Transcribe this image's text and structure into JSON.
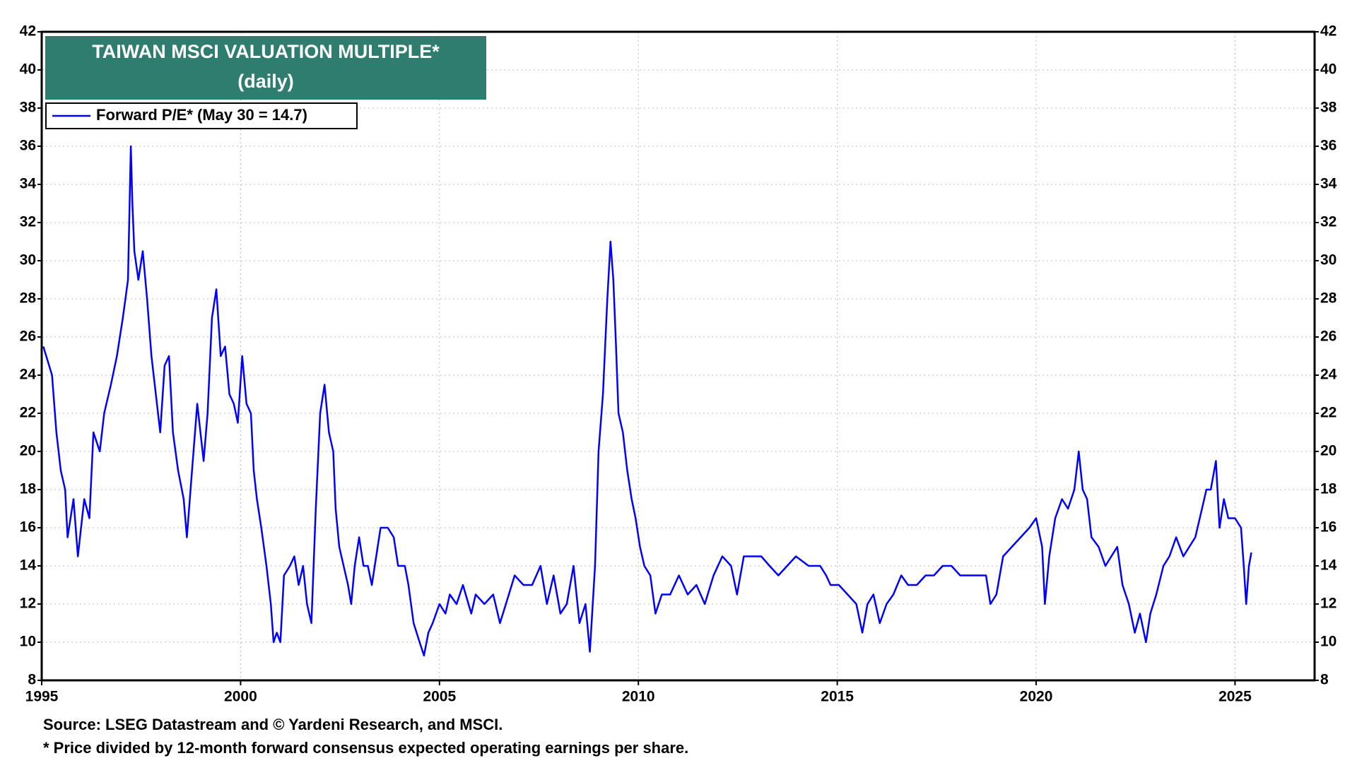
{
  "chart_data": {
    "type": "line",
    "title": "TAIWAN MSCI VALUATION MULTIPLE*",
    "subtitle": "(daily)",
    "notes": [
      "Source: LSEG Datastream and © Yardeni Research, and MSCI.",
      "* Price divided by 12-month forward consensus expected operating earnings per share."
    ],
    "x": [
      1995.04,
      1995.26,
      1995.37,
      1995.48,
      1995.59,
      1995.65,
      1995.8,
      1995.91,
      1996.07,
      1996.2,
      1996.3,
      1996.46,
      1996.57,
      1996.74,
      1996.89,
      1997.04,
      1997.17,
      1997.24,
      1997.28,
      1997.33,
      1997.43,
      1997.54,
      1997.65,
      1997.76,
      1997.87,
      1997.98,
      1998.09,
      1998.2,
      1998.3,
      1998.43,
      1998.57,
      1998.65,
      1998.78,
      1998.91,
      1999.07,
      1999.17,
      1999.28,
      1999.39,
      1999.5,
      1999.61,
      1999.72,
      1999.83,
      1999.93,
      2000.04,
      2000.15,
      2000.26,
      2000.33,
      2000.41,
      2000.52,
      2000.65,
      2000.76,
      2000.83,
      2000.91,
      2001.0,
      2001.09,
      2001.24,
      2001.35,
      2001.46,
      2001.57,
      2001.67,
      2001.78,
      2001.89,
      2002.0,
      2002.11,
      2002.22,
      2002.33,
      2002.39,
      2002.48,
      2002.59,
      2002.7,
      2002.78,
      2002.87,
      2002.98,
      2003.09,
      2003.2,
      2003.3,
      2003.41,
      2003.52,
      2003.7,
      2003.85,
      2003.96,
      2004.13,
      2004.22,
      2004.35,
      2004.5,
      2004.61,
      2004.72,
      2004.83,
      2005.0,
      2005.15,
      2005.26,
      2005.43,
      2005.59,
      2005.8,
      2005.91,
      2006.13,
      2006.35,
      2006.52,
      2006.67,
      2006.89,
      2007.11,
      2007.33,
      2007.54,
      2007.7,
      2007.87,
      2008.04,
      2008.2,
      2008.37,
      2008.52,
      2008.67,
      2008.78,
      2008.91,
      2009.0,
      2009.11,
      2009.22,
      2009.3,
      2009.37,
      2009.43,
      2009.5,
      2009.61,
      2009.72,
      2009.83,
      2009.93,
      2010.04,
      2010.15,
      2010.3,
      2010.43,
      2010.59,
      2010.8,
      2011.02,
      2011.24,
      2011.46,
      2011.67,
      2011.89,
      2012.11,
      2012.33,
      2012.48,
      2012.65,
      2012.87,
      2013.09,
      2013.3,
      2013.52,
      2013.74,
      2013.96,
      2014.28,
      2014.57,
      2014.72,
      2014.83,
      2015.04,
      2015.26,
      2015.48,
      2015.63,
      2015.76,
      2015.91,
      2016.07,
      2016.24,
      2016.41,
      2016.61,
      2016.78,
      2017.0,
      2017.22,
      2017.43,
      2017.65,
      2017.87,
      2018.09,
      2018.3,
      2018.52,
      2018.74,
      2018.85,
      2019.0,
      2019.17,
      2019.39,
      2019.61,
      2019.83,
      2020.0,
      2020.15,
      2020.22,
      2020.33,
      2020.48,
      2020.65,
      2020.8,
      2020.96,
      2021.07,
      2021.17,
      2021.28,
      2021.39,
      2021.57,
      2021.74,
      2021.89,
      2022.04,
      2022.17,
      2022.33,
      2022.48,
      2022.61,
      2022.76,
      2022.87,
      2023.02,
      2023.2,
      2023.35,
      2023.52,
      2023.7,
      2023.85,
      2024.0,
      2024.17,
      2024.28,
      2024.39,
      2024.52,
      2024.61,
      2024.72,
      2024.83,
      2025.0,
      2025.15,
      2025.22,
      2025.28,
      2025.35,
      2025.41
    ],
    "series": [
      {
        "name": "Forward P/E* (May 30 = 14.7)",
        "color": "#0000ff",
        "values": [
          25.5,
          24,
          21,
          19,
          18,
          15.5,
          17.5,
          14.5,
          17.5,
          16.5,
          21,
          20,
          22,
          23.5,
          25,
          27,
          29,
          36,
          33,
          30.5,
          29,
          30.5,
          28,
          25,
          23,
          21,
          24.5,
          25,
          21,
          19,
          17.5,
          15.5,
          19,
          22.5,
          19.5,
          22,
          27,
          28.5,
          25,
          25.5,
          23,
          22.5,
          21.5,
          25,
          22.5,
          22,
          19,
          17.5,
          16,
          14,
          12,
          10,
          10.5,
          10,
          13.5,
          14,
          14.5,
          13,
          14,
          12,
          11,
          17,
          22,
          23.5,
          21,
          20,
          17,
          15,
          14,
          13,
          12,
          14,
          15.5,
          14,
          14,
          13,
          14.5,
          16,
          16,
          15.5,
          14,
          14,
          13,
          11,
          10,
          9.3,
          10.5,
          11,
          12,
          11.5,
          12.5,
          12,
          13,
          11.5,
          12.5,
          12,
          12.5,
          11,
          12,
          13.5,
          13,
          13,
          14,
          12,
          13.5,
          11.5,
          12,
          14,
          11,
          12,
          9.5,
          14,
          20,
          23,
          28,
          31,
          29,
          26,
          22,
          21,
          19,
          17.5,
          16.5,
          15,
          14,
          13.5,
          11.5,
          12.5,
          12.5,
          13.5,
          12.5,
          13,
          12,
          13.5,
          14.5,
          14,
          12.5,
          14.5,
          14.5,
          14.5,
          14,
          13.5,
          14,
          14.5,
          14,
          14,
          13.5,
          13,
          13,
          12.5,
          12,
          10.5,
          12,
          12.5,
          11,
          12,
          12.5,
          13.5,
          13,
          13,
          13.5,
          13.5,
          14,
          14,
          13.5,
          13.5,
          13.5,
          13.5,
          12,
          12.5,
          14.5,
          15,
          15.5,
          16,
          16.5,
          15,
          12,
          14.5,
          16.5,
          17.5,
          17,
          18,
          20,
          18,
          17.5,
          15.5,
          15,
          14,
          14.5,
          15,
          13,
          12,
          10.5,
          11.5,
          10,
          11.5,
          12.5,
          14,
          14.5,
          15.5,
          14.5,
          15,
          15.5,
          17,
          18,
          18,
          19.5,
          16,
          17.5,
          16.5,
          16.5,
          16,
          14,
          12,
          14,
          14.7
        ]
      }
    ],
    "xlim": [
      1995,
      2027
    ],
    "xticks": [
      1995,
      2000,
      2005,
      2010,
      2015,
      2020,
      2025
    ],
    "ylim": [
      8,
      42
    ],
    "yticks": [
      8,
      10,
      12,
      14,
      16,
      18,
      20,
      22,
      24,
      26,
      28,
      30,
      32,
      34,
      36,
      38,
      40,
      42
    ],
    "y2lim": [
      8,
      42
    ],
    "y2ticks": [
      8,
      10,
      12,
      14,
      16,
      18,
      20,
      22,
      24,
      26,
      28,
      30,
      32,
      34,
      36,
      38,
      40,
      42
    ],
    "grid": true,
    "legend": "upper left"
  }
}
